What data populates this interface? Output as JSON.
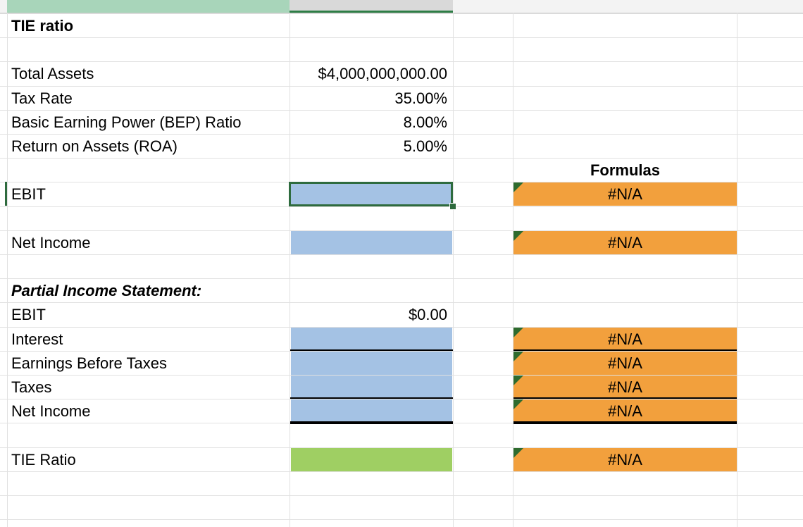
{
  "sheet": {
    "rows": [
      {
        "a": "TIE ratio"
      },
      {},
      {
        "a": "Total Assets",
        "b": "$4,000,000,000.00"
      },
      {
        "a": "Tax Rate",
        "b": "35.00%"
      },
      {
        "a": "Basic Earning Power (BEP) Ratio",
        "b": "8.00%"
      },
      {
        "a": "Return on Assets (ROA)",
        "b": "5.00%"
      },
      {
        "d": "Formulas"
      },
      {
        "a": "EBIT",
        "d": "#N/A"
      },
      {},
      {
        "a": "Net Income",
        "d": "#N/A"
      },
      {},
      {
        "a": "Partial Income Statement:"
      },
      {
        "a": "EBIT",
        "b": "$0.00"
      },
      {
        "a": "Interest",
        "d": "#N/A"
      },
      {
        "a": "Earnings Before Taxes",
        "d": "#N/A"
      },
      {
        "a": "Taxes",
        "d": "#N/A"
      },
      {
        "a": "Net Income",
        "d": "#N/A"
      },
      {},
      {
        "a": "TIE Ratio",
        "d": "#N/A"
      },
      {},
      {}
    ]
  }
}
